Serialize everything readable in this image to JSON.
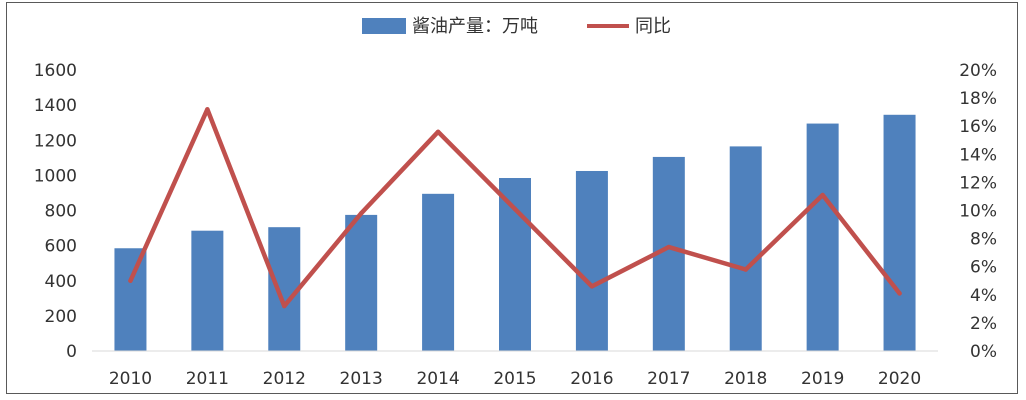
{
  "chart_data": {
    "type": "bar",
    "title": "",
    "xlabel": "",
    "ylabel": "",
    "categories": [
      "2010",
      "2011",
      "2012",
      "2013",
      "2014",
      "2015",
      "2016",
      "2017",
      "2018",
      "2019",
      "2020"
    ],
    "series": [
      {
        "name": "酱油产量：万吨",
        "type": "bar",
        "axis": "left",
        "color": "#4f81bd",
        "values": [
          585,
          685,
          705,
          775,
          895,
          985,
          1025,
          1105,
          1165,
          1295,
          1345
        ]
      },
      {
        "name": "同比",
        "type": "line",
        "axis": "right",
        "color": "#c0504d",
        "values": [
          0.05,
          0.172,
          0.032,
          0.098,
          0.156,
          0.101,
          0.046,
          0.074,
          0.058,
          0.111,
          0.041
        ]
      }
    ],
    "ylim": [
      0,
      1600
    ],
    "y_ticks": [
      "0",
      "200",
      "400",
      "600",
      "800",
      "1000",
      "1200",
      "1400",
      "1600"
    ],
    "y2lim": [
      0,
      0.2
    ],
    "y2_ticks": [
      "0%",
      "2%",
      "4%",
      "6%",
      "8%",
      "10%",
      "12%",
      "14%",
      "16%",
      "18%",
      "20%"
    ],
    "grid": false,
    "legend_position": "top-center"
  }
}
